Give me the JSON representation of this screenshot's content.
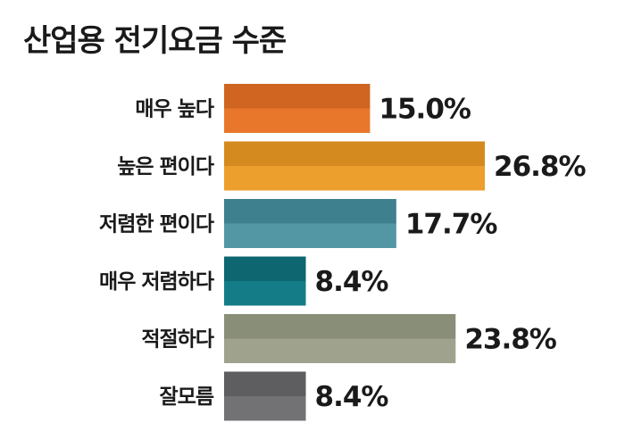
{
  "chart_data": {
    "type": "bar",
    "orientation": "horizontal",
    "title": "산업용 전기요금 수준",
    "categories": [
      "매우 높다",
      "높은 편이다",
      "저렴한 편이다",
      "매우 저렴하다",
      "적절하다",
      "잘모름"
    ],
    "values": [
      15.0,
      26.8,
      17.7,
      8.4,
      23.8,
      8.4
    ],
    "labels": [
      "15.0%",
      "26.8%",
      "17.7%",
      "8.4%",
      "23.8%",
      "8.4%"
    ],
    "unit": "%",
    "xlim": [
      0,
      30
    ],
    "grid": false,
    "legend": "none",
    "colors": [
      {
        "top": "#cf6520",
        "bottom": "#e8772b"
      },
      {
        "top": "#d58a1f",
        "bottom": "#ec9f2c"
      },
      {
        "top": "#3f808f",
        "bottom": "#5497a4"
      },
      {
        "top": "#0d6670",
        "bottom": "#137c87"
      },
      {
        "top": "#898e78",
        "bottom": "#9fa38d"
      },
      {
        "top": "#5e5e61",
        "bottom": "#727275"
      }
    ]
  }
}
